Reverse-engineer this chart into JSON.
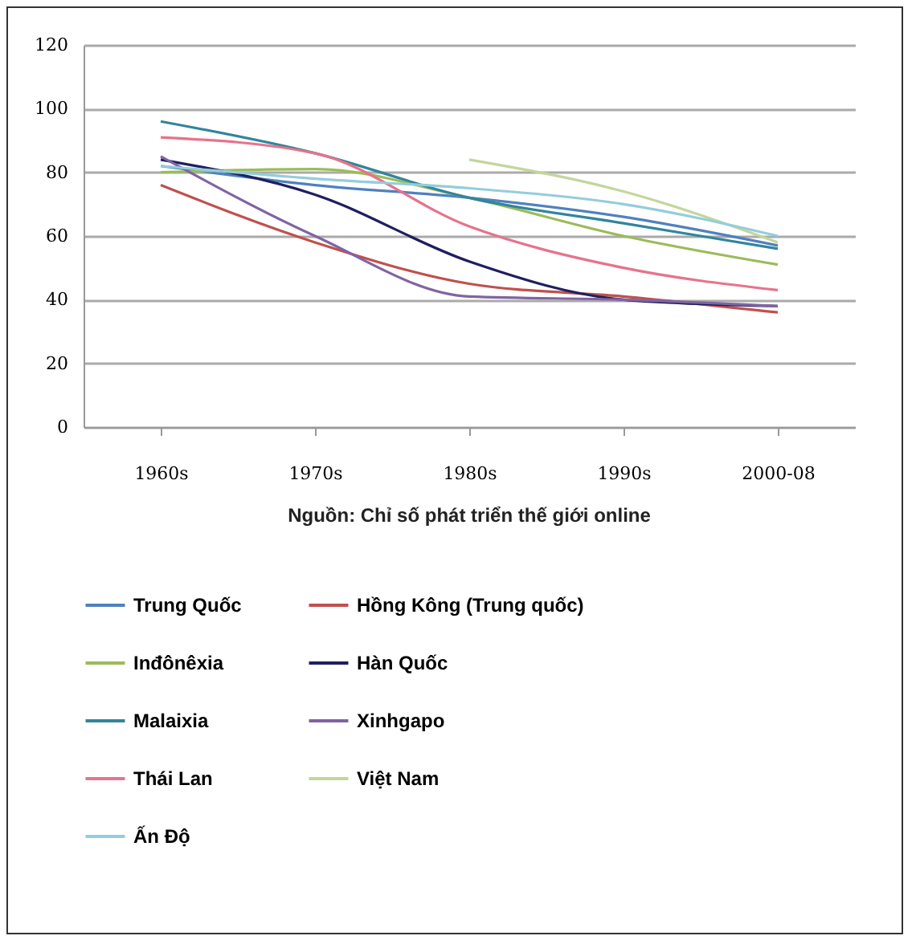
{
  "chart_data": {
    "type": "line",
    "categories": [
      "1960s",
      "1970s",
      "1980s",
      "1990s",
      "2000-08"
    ],
    "ylim": [
      0,
      120
    ],
    "yticks": [
      0,
      20,
      40,
      60,
      80,
      100,
      120
    ],
    "grid": "y",
    "legend": "bottom",
    "marker": "none",
    "annotations": [
      "Nguồn: Chỉ số phát triển thế giới online"
    ],
    "series": [
      {
        "name": "Trung Quốc",
        "color": "#4f81bd",
        "values": [
          82,
          76,
          72,
          66,
          57
        ]
      },
      {
        "name": "Hồng Kông (Trung quốc)",
        "color": "#c0504d",
        "values": [
          76,
          58,
          45,
          41,
          36
        ]
      },
      {
        "name": "Inđônêxia",
        "color": "#9bbb59",
        "values": [
          80,
          81,
          72,
          60,
          51
        ]
      },
      {
        "name": "Hàn Quốc",
        "color": "#1f1f5f",
        "values": [
          84,
          73,
          52,
          40,
          38
        ]
      },
      {
        "name": "Malaixia",
        "color": "#31859c",
        "values": [
          96,
          86,
          72,
          64,
          56
        ]
      },
      {
        "name": "Xinhgapo",
        "color": "#8064a2",
        "values": [
          85,
          60,
          41,
          40,
          38
        ]
      },
      {
        "name": "Thái Lan",
        "color": "#e6738c",
        "values": [
          91,
          86,
          63,
          50,
          43
        ]
      },
      {
        "name": "Việt Nam",
        "color": "#c3d69b",
        "values": [
          null,
          null,
          84,
          74,
          58
        ]
      },
      {
        "name": "Ấn Độ",
        "color": "#93cddd",
        "values": [
          82,
          78,
          75,
          70,
          60
        ]
      }
    ]
  }
}
